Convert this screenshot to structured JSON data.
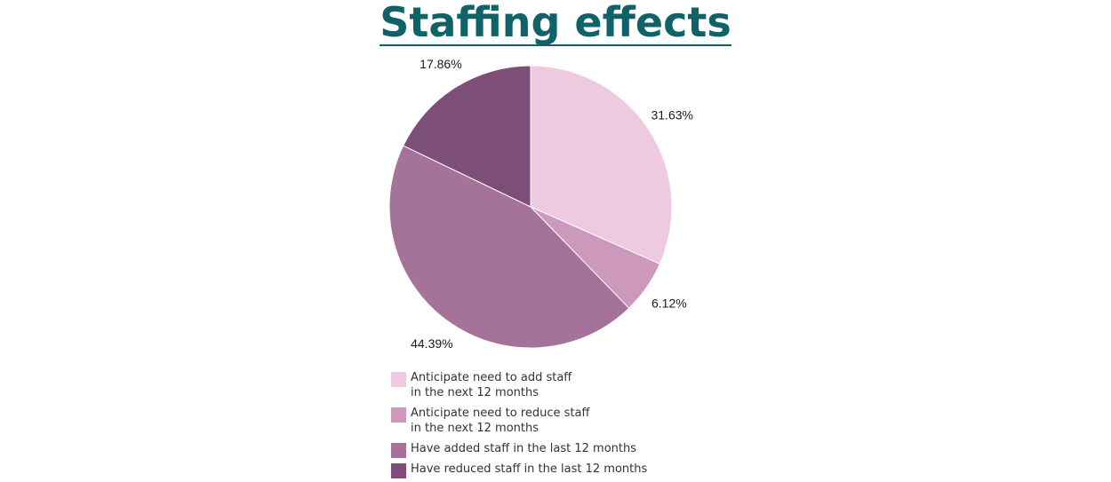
{
  "chart_data": {
    "type": "pie",
    "title": "Staffing effects",
    "slices": [
      {
        "label": "Anticipate need to add staff\nin the next 12 months",
        "value": 31.63,
        "display": "31.63%",
        "color": "#eecae1"
      },
      {
        "label": "Anticipate need to reduce staff\nin the next 12 months",
        "value": 6.12,
        "display": "6.12%",
        "color": "#cc99bd"
      },
      {
        "label": "Have added staff in the last 12 months",
        "value": 44.39,
        "display": "44.39%",
        "color": "#a5729a"
      },
      {
        "label": "Have reduced staff in the last 12 months",
        "value": 17.86,
        "display": "17.86%",
        "color": "#7d4e77"
      }
    ],
    "legend_position": "bottom"
  }
}
